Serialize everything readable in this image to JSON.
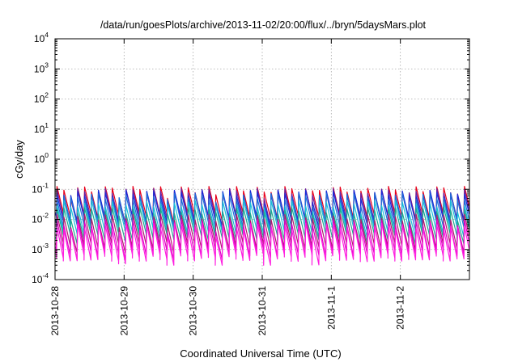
{
  "chart_data": {
    "type": "line",
    "title": "/data/run/goesPlots/archive/2013-11-02/20:00/flux/../bryn/5daysMars.plot",
    "xlabel": "Coordinated Universal Time (UTC)",
    "ylabel": "cGy/day",
    "yscale": "log",
    "ylim": [
      0.0001,
      10000
    ],
    "xlim_days": [
      0,
      6
    ],
    "x_tick_labels": [
      "2013-10-28",
      "2013-10-29",
      "2013-10-30",
      "2013-10-31",
      "2013-11-1",
      "2013-11-2"
    ],
    "x_tick_values_days": [
      0,
      1,
      2,
      3,
      4,
      5
    ],
    "y_ticks": [
      {
        "base": "10",
        "exp": "-4",
        "value": 0.0001
      },
      {
        "base": "10",
        "exp": "-3",
        "value": 0.001
      },
      {
        "base": "10",
        "exp": "-2",
        "value": 0.01
      },
      {
        "base": "10",
        "exp": "-1",
        "value": 0.1
      },
      {
        "base": "10",
        "exp": "0",
        "value": 1
      },
      {
        "base": "10",
        "exp": "1",
        "value": 10
      },
      {
        "base": "10",
        "exp": "2",
        "value": 100
      },
      {
        "base": "10",
        "exp": "3",
        "value": 1000
      },
      {
        "base": "10",
        "exp": "4",
        "value": 10000
      }
    ],
    "grid": true,
    "legend": "none",
    "pattern": {
      "cycles_per_day": 10,
      "phase_day": 0.02,
      "description": "sawtooth: sharp rise at each cycle start, exponential decay until next cycle"
    },
    "series": [
      {
        "color": "#e8001a",
        "peak": 0.1,
        "trough": 0.015
      },
      {
        "color": "#6a1fa0",
        "peak": 0.085,
        "trough": 0.012
      },
      {
        "color": "#1a2ad8",
        "peak": 0.075,
        "trough": 0.011
      },
      {
        "color": "#1f6fd8",
        "peak": 0.06,
        "trough": 0.008
      },
      {
        "color": "#19c0d8",
        "peak": 0.035,
        "trough": 0.005
      },
      {
        "color": "#1fa890",
        "peak": 0.02,
        "trough": 0.003
      },
      {
        "color": "#b01a70",
        "peak": 0.012,
        "trough": 0.0015
      },
      {
        "color": "#e000c8",
        "peak": 0.008,
        "trough": 0.0009
      },
      {
        "color": "#ff1fe0",
        "peak": 0.006,
        "trough": 0.0006
      }
    ]
  }
}
